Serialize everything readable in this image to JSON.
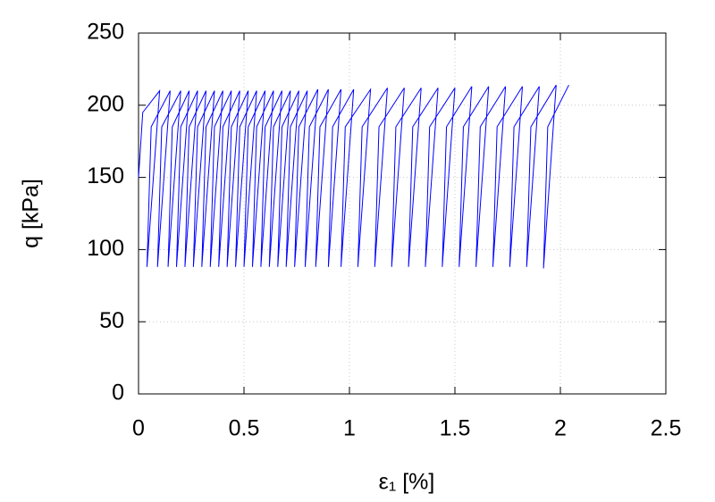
{
  "chart_data": {
    "type": "line",
    "xlabel": "ε₁ [%]",
    "ylabel": "q [kPa]",
    "color": "#0000ff",
    "grid": true,
    "xlim": [
      0,
      2.5
    ],
    "xticks": [
      0,
      0.5,
      1,
      1.5,
      2,
      2.5
    ],
    "ylim": [
      0,
      250
    ],
    "yticks": [
      0,
      50,
      100,
      150,
      200,
      250
    ],
    "x": [
      0,
      0.02,
      0.1,
      0.04,
      0.06,
      0.15,
      0.09,
      0.11,
      0.2,
      0.14,
      0.16,
      0.24,
      0.18,
      0.2,
      0.28,
      0.22,
      0.24,
      0.32,
      0.26,
      0.28,
      0.36,
      0.3,
      0.32,
      0.4,
      0.34,
      0.36,
      0.44,
      0.38,
      0.4,
      0.48,
      0.42,
      0.44,
      0.52,
      0.46,
      0.48,
      0.56,
      0.5,
      0.52,
      0.6,
      0.54,
      0.56,
      0.64,
      0.58,
      0.6,
      0.68,
      0.62,
      0.64,
      0.72,
      0.66,
      0.68,
      0.76,
      0.7,
      0.72,
      0.8,
      0.74,
      0.76,
      0.85,
      0.79,
      0.81,
      0.9,
      0.84,
      0.86,
      0.96,
      0.9,
      0.92,
      1.02,
      0.96,
      0.98,
      1.1,
      1.04,
      1.06,
      1.18,
      1.12,
      1.14,
      1.26,
      1.2,
      1.22,
      1.34,
      1.28,
      1.3,
      1.42,
      1.36,
      1.38,
      1.5,
      1.44,
      1.46,
      1.58,
      1.52,
      1.54,
      1.66,
      1.6,
      1.62,
      1.74,
      1.68,
      1.7,
      1.82,
      1.76,
      1.78,
      1.9,
      1.84,
      1.86,
      1.98,
      1.92,
      1.94,
      2.04
    ],
    "values": [
      150,
      195,
      210,
      88,
      185,
      210,
      88,
      185,
      210,
      88,
      185,
      210,
      88,
      185,
      210,
      88,
      185,
      210,
      88,
      185,
      210,
      88,
      185,
      210,
      88,
      185,
      210,
      88,
      185,
      210,
      88,
      185,
      210,
      88,
      185,
      210,
      88,
      185,
      210,
      88,
      185,
      210,
      88,
      185,
      210,
      88,
      185,
      210,
      88,
      185,
      210,
      88,
      185,
      210,
      88,
      185,
      211,
      88,
      185,
      211,
      88,
      185,
      211,
      88,
      185,
      211,
      88,
      185,
      211,
      88,
      185,
      212,
      88,
      185,
      212,
      88,
      185,
      212,
      88,
      185,
      212,
      88,
      185,
      212,
      88,
      185,
      213,
      88,
      185,
      213,
      88,
      185,
      213,
      88,
      185,
      213,
      88,
      185,
      213,
      88,
      185,
      214,
      87,
      185,
      214
    ]
  }
}
